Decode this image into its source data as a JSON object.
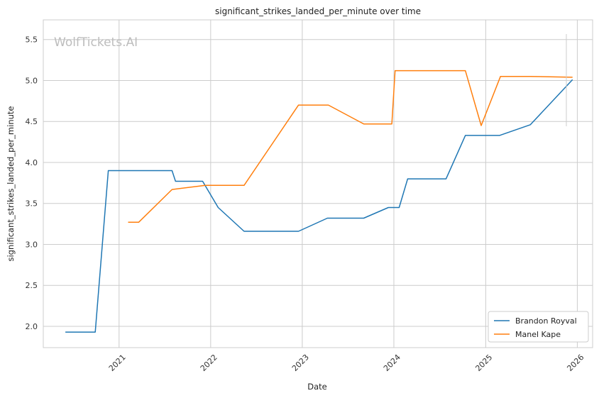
{
  "chart_data": {
    "type": "line",
    "title": "significant_strikes_landed_per_minute over time",
    "xlabel": "Date",
    "ylabel": "significant_strikes_landed_per_minute",
    "watermark": "WolfTickets.AI",
    "x_ticks": [
      "2021",
      "2022",
      "2023",
      "2024",
      "2025",
      "2026"
    ],
    "y_ticks": [
      "2.0",
      "2.5",
      "3.0",
      "3.5",
      "4.0",
      "4.5",
      "5.0",
      "5.5"
    ],
    "xlim": [
      "2020-03-05",
      "2026-03-03"
    ],
    "ylim": [
      1.74,
      5.74
    ],
    "grid": true,
    "legend_position": "lower-right",
    "series": [
      {
        "name": "Brandon Royval",
        "color": "#1f77b4",
        "points": [
          [
            "2020-06-01",
            1.93
          ],
          [
            "2020-09-28",
            1.93
          ],
          [
            "2020-11-19",
            3.9
          ],
          [
            "2021-07-31",
            3.9
          ],
          [
            "2021-08-14",
            3.77
          ],
          [
            "2021-11-30",
            3.77
          ],
          [
            "2022-01-31",
            3.45
          ],
          [
            "2022-05-14",
            3.16
          ],
          [
            "2022-12-17",
            3.16
          ],
          [
            "2023-04-11",
            3.32
          ],
          [
            "2023-09-03",
            3.32
          ],
          [
            "2023-12-10",
            3.45
          ],
          [
            "2024-01-22",
            3.45
          ],
          [
            "2024-02-25",
            3.8
          ],
          [
            "2024-07-27",
            3.8
          ],
          [
            "2024-10-12",
            4.33
          ],
          [
            "2025-02-25",
            4.33
          ],
          [
            "2025-06-28",
            4.46
          ],
          [
            "2025-12-13",
            5.01
          ]
        ]
      },
      {
        "name": "Manel Kape",
        "color": "#ff7f0e",
        "points": [
          [
            "2021-02-06",
            3.27
          ],
          [
            "2021-03-20",
            3.27
          ],
          [
            "2021-07-31",
            3.67
          ],
          [
            "2021-12-11",
            3.72
          ],
          [
            "2022-05-14",
            3.72
          ],
          [
            "2022-12-17",
            4.7
          ],
          [
            "2023-04-15",
            4.7
          ],
          [
            "2023-09-03",
            4.47
          ],
          [
            "2023-12-24",
            4.47
          ],
          [
            "2024-01-06",
            5.12
          ],
          [
            "2024-10-12",
            5.12
          ],
          [
            "2024-12-14",
            4.45
          ],
          [
            "2025-03-01",
            5.05
          ],
          [
            "2025-06-28",
            5.05
          ],
          [
            "2025-12-13",
            5.04
          ]
        ]
      }
    ]
  }
}
